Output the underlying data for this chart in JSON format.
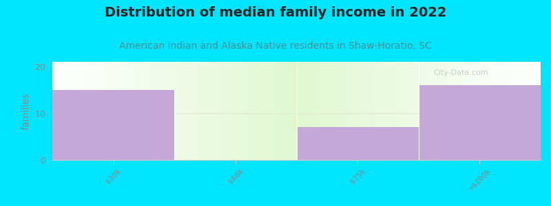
{
  "title": "Distribution of median family income in 2022",
  "subtitle": "American Indian and Alaska Native residents in Shaw-Horatio, SC",
  "categories": [
    "$30k",
    "$60k",
    "$75k",
    ">$100k"
  ],
  "values": [
    15,
    0,
    7,
    16
  ],
  "bar_colors": [
    "#c4a8d8",
    "#c4a8d8",
    "#c4a8d8",
    "#c4a8d8"
  ],
  "background_color": "#00e5ff",
  "plot_bg_left": "#f5fcf0",
  "plot_bg_center": "#dff0d0",
  "ylabel": "families",
  "ylim": [
    0,
    21
  ],
  "yticks": [
    0,
    10,
    20
  ],
  "title_fontsize": 14,
  "subtitle_fontsize": 10,
  "watermark": "City-Data.com",
  "bar_width": 1.0,
  "hline_color": "#e0e8d0",
  "spine_color": "#cccccc",
  "tick_color": "#888888",
  "ylabel_color": "#888888",
  "title_color": "#222222",
  "subtitle_color": "#4a9090"
}
